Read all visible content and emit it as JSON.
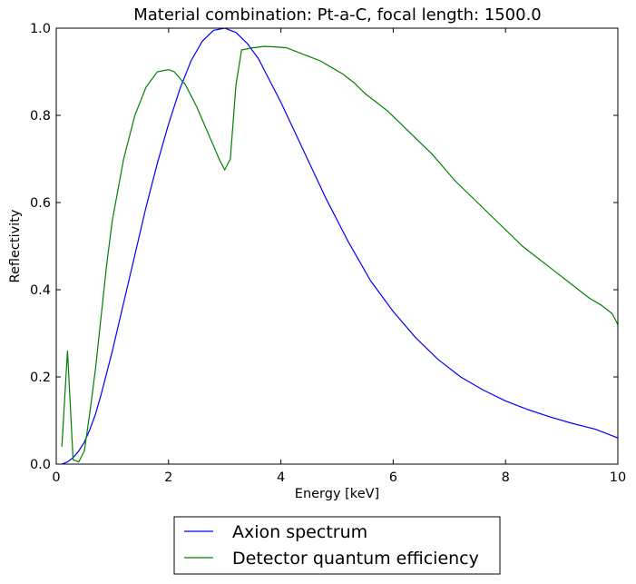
{
  "chart_data": {
    "type": "line",
    "title": "Material combination: Pt-a-C, focal length: 1500.0",
    "xlabel": "Energy [keV]",
    "ylabel": "Reflectivity",
    "xlim": [
      0,
      10
    ],
    "ylim": [
      0,
      1.0
    ],
    "xticks": [
      "0",
      "2",
      "4",
      "6",
      "8",
      "10"
    ],
    "yticks": [
      "0.0",
      "0.2",
      "0.4",
      "0.6",
      "0.8",
      "1.0"
    ],
    "grid": false,
    "legend_position": "below-center",
    "series": [
      {
        "name": "Axion spectrum",
        "color": "#0000ff",
        "x": [
          0.1,
          0.2,
          0.3,
          0.4,
          0.5,
          0.6,
          0.7,
          0.8,
          0.9,
          1.0,
          1.2,
          1.4,
          1.6,
          1.8,
          2.0,
          2.2,
          2.4,
          2.6,
          2.8,
          3.0,
          3.2,
          3.4,
          3.6,
          3.8,
          4.0,
          4.4,
          4.8,
          5.2,
          5.6,
          6.0,
          6.4,
          6.8,
          7.2,
          7.6,
          8.0,
          8.4,
          8.8,
          9.2,
          9.6,
          10.0
        ],
        "y": [
          0.0,
          0.005,
          0.015,
          0.03,
          0.05,
          0.08,
          0.115,
          0.16,
          0.21,
          0.26,
          0.37,
          0.48,
          0.59,
          0.69,
          0.78,
          0.86,
          0.925,
          0.97,
          0.995,
          1.0,
          0.99,
          0.965,
          0.93,
          0.88,
          0.83,
          0.72,
          0.61,
          0.51,
          0.42,
          0.35,
          0.29,
          0.24,
          0.2,
          0.17,
          0.145,
          0.125,
          0.108,
          0.093,
          0.08,
          0.06
        ]
      },
      {
        "name": "Detector quantum efficiency",
        "color": "#008000",
        "x": [
          0.1,
          0.2,
          0.3,
          0.4,
          0.5,
          0.6,
          0.7,
          0.8,
          0.9,
          1.0,
          1.2,
          1.4,
          1.6,
          1.8,
          2.0,
          2.1,
          2.3,
          2.5,
          2.7,
          2.9,
          3.0,
          3.1,
          3.2,
          3.3,
          3.5,
          3.7,
          3.9,
          4.1,
          4.3,
          4.5,
          4.7,
          4.9,
          5.1,
          5.3,
          5.5,
          5.7,
          5.9,
          6.1,
          6.3,
          6.5,
          6.7,
          6.9,
          7.1,
          7.3,
          7.5,
          7.7,
          7.9,
          8.1,
          8.3,
          8.5,
          8.7,
          8.9,
          9.1,
          9.3,
          9.5,
          9.7,
          9.9,
          10.0
        ],
        "y": [
          0.04,
          0.26,
          0.01,
          0.005,
          0.03,
          0.12,
          0.22,
          0.34,
          0.46,
          0.56,
          0.7,
          0.8,
          0.865,
          0.9,
          0.905,
          0.9,
          0.87,
          0.82,
          0.76,
          0.7,
          0.675,
          0.7,
          0.87,
          0.95,
          0.955,
          0.958,
          0.957,
          0.955,
          0.945,
          0.935,
          0.925,
          0.91,
          0.895,
          0.875,
          0.85,
          0.83,
          0.81,
          0.785,
          0.76,
          0.735,
          0.71,
          0.68,
          0.65,
          0.625,
          0.6,
          0.575,
          0.55,
          0.525,
          0.5,
          0.48,
          0.46,
          0.44,
          0.42,
          0.4,
          0.38,
          0.365,
          0.345,
          0.32
        ]
      }
    ]
  }
}
